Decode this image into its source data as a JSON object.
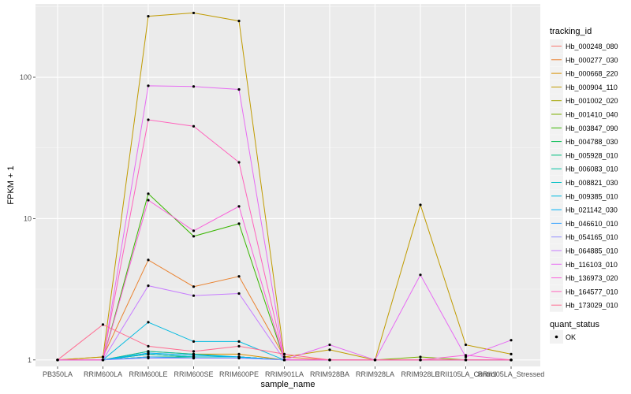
{
  "chart_data": {
    "type": "line",
    "xlabel": "sample_name",
    "ylabel": "FPKM + 1",
    "y_scale": "log10",
    "ylim": [
      0.9,
      330
    ],
    "y_ticks": [
      {
        "value": 1,
        "label": "1"
      },
      {
        "value": 10,
        "label": "10"
      },
      {
        "value": 100,
        "label": "100"
      }
    ],
    "categories": [
      "PB350LA",
      "RRIM600LA",
      "RRIM600LE",
      "RRIM600SE",
      "RRIM600PE",
      "RRIM901LA",
      "RRIM928BA",
      "RRIM928LA",
      "RRIM928LE",
      "RRII105LA_Control",
      "RRII105LA_Stressed"
    ],
    "grid": true,
    "legend_position": "right",
    "legend_title": "tracking_id",
    "legend2_title": "quant_status",
    "legend2_entry": "OK",
    "series": [
      {
        "name": "Hb_000248_080",
        "color": "#F8766D",
        "values": [
          1,
          1,
          1.1,
          1.05,
          1.05,
          1,
          1,
          1,
          1,
          1,
          1
        ]
      },
      {
        "name": "Hb_000277_030",
        "color": "#EA8331",
        "values": [
          1,
          1.05,
          5.1,
          3.3,
          3.9,
          1.05,
          1,
          1,
          1,
          1,
          1
        ]
      },
      {
        "name": "Hb_000668_220",
        "color": "#D89000",
        "values": [
          1,
          1,
          1.15,
          1.1,
          1.1,
          1,
          1,
          1,
          1,
          1,
          1
        ]
      },
      {
        "name": "Hb_000904_110",
        "color": "#C09B00",
        "values": [
          1,
          1.05,
          270,
          285,
          250,
          1.05,
          1.18,
          1,
          12.5,
          1.28,
          1.1
        ]
      },
      {
        "name": "Hb_001002_020",
        "color": "#A3A500",
        "values": [
          1,
          1,
          1.05,
          1.05,
          1.05,
          1,
          1,
          1,
          1,
          1,
          1
        ]
      },
      {
        "name": "Hb_001410_040",
        "color": "#7CAE00",
        "values": [
          1,
          1,
          1.05,
          1.05,
          1.05,
          1,
          1,
          1,
          1.05,
          1,
          1
        ]
      },
      {
        "name": "Hb_003847_090",
        "color": "#39B600",
        "values": [
          1,
          1,
          15,
          7.5,
          9.2,
          1,
          1,
          1,
          1,
          1,
          1
        ]
      },
      {
        "name": "Hb_004788_030",
        "color": "#00BB4E",
        "values": [
          1,
          1,
          1.1,
          1.05,
          1.05,
          1,
          1,
          1,
          1,
          1,
          1
        ]
      },
      {
        "name": "Hb_005928_010",
        "color": "#00BF7D",
        "values": [
          1,
          1,
          1.05,
          1.05,
          1.05,
          1,
          1,
          1,
          1,
          1,
          1
        ]
      },
      {
        "name": "Hb_006083_010",
        "color": "#00C1A3",
        "values": [
          1,
          1,
          1.15,
          1.1,
          1.05,
          1,
          1,
          1,
          1,
          1,
          1
        ]
      },
      {
        "name": "Hb_008821_030",
        "color": "#00BFC4",
        "values": [
          1,
          1,
          1.1,
          1.05,
          1.05,
          1,
          1,
          1,
          1,
          1,
          1
        ]
      },
      {
        "name": "Hb_009385_010",
        "color": "#00BAE0",
        "values": [
          1,
          1,
          1.85,
          1.35,
          1.35,
          1,
          1,
          1,
          1,
          1,
          1
        ]
      },
      {
        "name": "Hb_021142_030",
        "color": "#00B0F6",
        "values": [
          1,
          1,
          1.12,
          1.08,
          1.05,
          1,
          1,
          1,
          1,
          1,
          1
        ]
      },
      {
        "name": "Hb_046610_010",
        "color": "#35A2FF",
        "values": [
          1,
          1,
          1.05,
          1.03,
          1.03,
          1,
          1,
          1,
          1,
          1,
          1
        ]
      },
      {
        "name": "Hb_054165_010",
        "color": "#9590FF",
        "values": [
          1,
          1,
          1.03,
          1.03,
          1.03,
          1,
          1,
          1,
          1,
          1,
          1
        ]
      },
      {
        "name": "Hb_064885_010",
        "color": "#C77CFF",
        "values": [
          1,
          1,
          3.35,
          2.85,
          2.95,
          1,
          1,
          1,
          1,
          1,
          1
        ]
      },
      {
        "name": "Hb_116103_010",
        "color": "#E76BF3",
        "values": [
          1,
          1,
          87,
          86,
          82,
          1,
          1.28,
          1,
          4,
          1.05,
          1.38
        ]
      },
      {
        "name": "Hb_136973_020",
        "color": "#FA62DB",
        "values": [
          1,
          1,
          13.5,
          8.2,
          12.2,
          1,
          1,
          1,
          1,
          1.08,
          1
        ]
      },
      {
        "name": "Hb_164577_010",
        "color": "#FF62BC",
        "values": [
          1,
          1,
          50,
          45,
          25,
          1,
          1,
          1,
          1,
          1,
          1
        ]
      },
      {
        "name": "Hb_173029_010",
        "color": "#FF6C91",
        "values": [
          1,
          1.78,
          1.25,
          1.15,
          1.25,
          1.1,
          1,
          1,
          1,
          1,
          1
        ]
      }
    ]
  }
}
